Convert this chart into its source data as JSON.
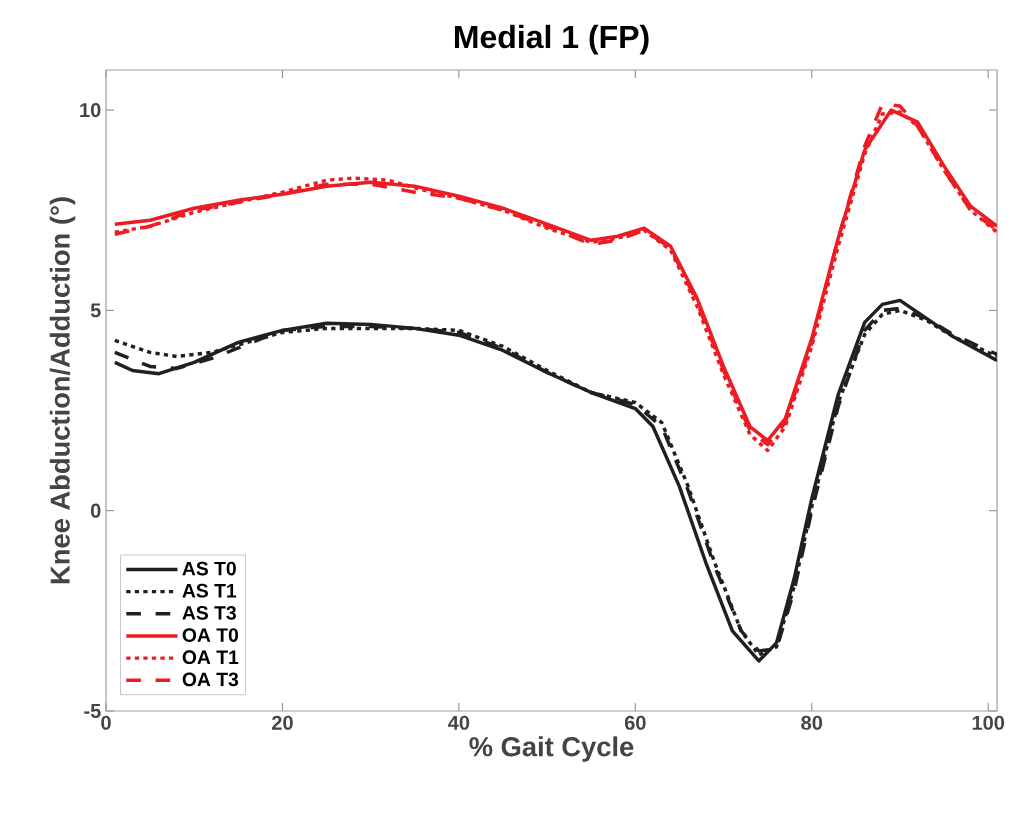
{
  "chart_data": {
    "type": "line",
    "title": "Medial 1 (FP)",
    "xlabel": "% Gait Cycle",
    "ylabel": "Knee Abduction/Adduction (°)",
    "xlim": [
      0,
      101
    ],
    "ylim": [
      -5,
      11
    ],
    "xticks": [
      0,
      20,
      40,
      60,
      80,
      100
    ],
    "yticks": [
      -5,
      0,
      5,
      10
    ],
    "grid": false,
    "legend": "bottom left",
    "marker": "none",
    "series": [
      {
        "name": "AS T0",
        "color": "#231f20",
        "line_style": "solid",
        "x": [
          1,
          3,
          6,
          10,
          15,
          20,
          25,
          30,
          35,
          40,
          45,
          50,
          55,
          60,
          62,
          65,
          68,
          71,
          74,
          76,
          78,
          80,
          83,
          86,
          88,
          90,
          93,
          96,
          101
        ],
        "values": [
          3.7,
          3.5,
          3.42,
          3.7,
          4.2,
          4.5,
          4.68,
          4.65,
          4.55,
          4.38,
          4.0,
          3.45,
          2.95,
          2.55,
          2.1,
          0.6,
          -1.3,
          -3.0,
          -3.75,
          -3.3,
          -1.7,
          0.3,
          2.9,
          4.7,
          5.15,
          5.25,
          4.8,
          4.35,
          3.75
        ]
      },
      {
        "name": "AS T1",
        "color": "#231f20",
        "line_style": "dotted",
        "x": [
          1,
          5,
          8,
          12,
          20,
          25,
          30,
          35,
          40,
          45,
          50,
          55,
          60,
          63,
          66,
          69,
          72,
          74,
          76,
          78,
          80,
          83,
          86,
          88,
          90,
          93,
          96,
          101
        ],
        "values": [
          4.25,
          3.95,
          3.85,
          3.95,
          4.45,
          4.55,
          4.55,
          4.55,
          4.5,
          4.1,
          3.5,
          2.95,
          2.7,
          2.2,
          0.6,
          -1.3,
          -3.0,
          -3.6,
          -3.4,
          -1.9,
          0.1,
          2.7,
          4.4,
          4.9,
          5.0,
          4.75,
          4.35,
          3.85
        ]
      },
      {
        "name": "AS T3",
        "color": "#231f20",
        "line_style": "dashed",
        "x": [
          1,
          5,
          8,
          12,
          20,
          25,
          30,
          35,
          40,
          45,
          50,
          55,
          60,
          63,
          66,
          69,
          72,
          74,
          76,
          78,
          80,
          83,
          86,
          88,
          90,
          93,
          96,
          101
        ],
        "values": [
          3.95,
          3.6,
          3.55,
          3.8,
          4.5,
          4.6,
          4.6,
          4.55,
          4.45,
          4.05,
          3.45,
          2.95,
          2.65,
          2.1,
          0.5,
          -1.4,
          -3.0,
          -3.5,
          -3.45,
          -2.0,
          0.0,
          2.6,
          4.5,
          5.0,
          5.05,
          4.8,
          4.4,
          3.9
        ]
      },
      {
        "name": "OA T0",
        "color": "#ed1c24",
        "line_style": "solid",
        "x": [
          1,
          5,
          10,
          15,
          20,
          25,
          30,
          35,
          40,
          45,
          50,
          55,
          58,
          61,
          64,
          67,
          70,
          73,
          75,
          77,
          80,
          83,
          86,
          89,
          92,
          95,
          98,
          101
        ],
        "values": [
          7.15,
          7.25,
          7.55,
          7.75,
          7.9,
          8.1,
          8.2,
          8.1,
          7.85,
          7.55,
          7.15,
          6.75,
          6.85,
          7.05,
          6.6,
          5.3,
          3.6,
          2.1,
          1.75,
          2.3,
          4.3,
          6.8,
          9.0,
          10.0,
          9.7,
          8.6,
          7.6,
          7.1
        ]
      },
      {
        "name": "OA T1",
        "color": "#ed1c24",
        "line_style": "dotted",
        "x": [
          1,
          5,
          10,
          15,
          20,
          25,
          28,
          32,
          36,
          40,
          45,
          50,
          55,
          58,
          61,
          64,
          67,
          70,
          73,
          75,
          77,
          80,
          83,
          86,
          88,
          90,
          92,
          95,
          98,
          101
        ],
        "values": [
          6.95,
          7.1,
          7.45,
          7.7,
          7.95,
          8.25,
          8.3,
          8.25,
          8.0,
          7.8,
          7.5,
          7.05,
          6.7,
          6.8,
          7.0,
          6.5,
          5.1,
          3.4,
          1.9,
          1.5,
          2.1,
          4.1,
          6.6,
          8.9,
          9.9,
          9.95,
          9.6,
          8.5,
          7.5,
          6.95
        ]
      },
      {
        "name": "OA T3",
        "color": "#ed1c24",
        "line_style": "dashed",
        "x": [
          1,
          5,
          10,
          15,
          20,
          25,
          30,
          35,
          40,
          45,
          50,
          55,
          58,
          61,
          64,
          67,
          70,
          73,
          75,
          77,
          80,
          83,
          86,
          88,
          90,
          92,
          95,
          98,
          101
        ],
        "values": [
          6.9,
          7.1,
          7.5,
          7.7,
          7.9,
          8.15,
          8.15,
          7.95,
          7.8,
          7.5,
          7.1,
          6.65,
          6.75,
          7.0,
          6.55,
          5.2,
          3.5,
          2.0,
          1.65,
          2.2,
          4.2,
          6.8,
          9.1,
          10.15,
          10.1,
          9.6,
          8.5,
          7.5,
          7.0
        ]
      }
    ]
  }
}
